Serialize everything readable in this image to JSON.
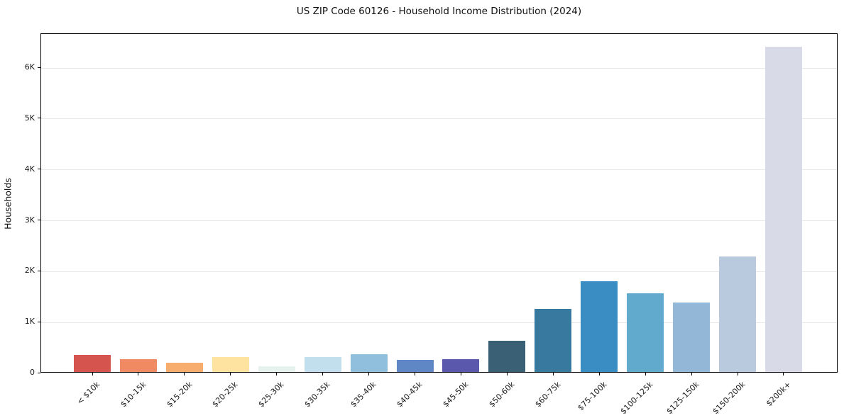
{
  "figure": {
    "background": "#ffffff",
    "axis_color": "#000000",
    "grid_color": "#e8e8e8",
    "text_color": "#1a1a1a"
  },
  "chart_data": {
    "type": "bar",
    "title": "US ZIP Code 60126 - Household Income Distribution (2024)",
    "xlabel": "",
    "ylabel": "Households",
    "legend": "none",
    "grid": "horizontal",
    "ylim": [
      0,
      6670
    ],
    "yticks": [
      {
        "value": 0,
        "label": "0"
      },
      {
        "value": 1000,
        "label": "1K"
      },
      {
        "value": 2000,
        "label": "2K"
      },
      {
        "value": 3000,
        "label": "3K"
      },
      {
        "value": 4000,
        "label": "4K"
      },
      {
        "value": 5000,
        "label": "5K"
      },
      {
        "value": 6000,
        "label": "6K"
      }
    ],
    "categories": [
      "< $10k",
      "$10-15k",
      "$15-20k",
      "$20-25k",
      "$25-30k",
      "$30-35k",
      "$35-40k",
      "$40-45k",
      "$45-50k",
      "$50-60k",
      "$60-75k",
      "$75-100k",
      "$100-125k",
      "$125-150k",
      "$150-200k",
      "$200k+"
    ],
    "values": [
      330,
      250,
      180,
      295,
      115,
      290,
      350,
      235,
      250,
      610,
      1240,
      1780,
      1545,
      1360,
      2270,
      6390
    ],
    "bar_colors": [
      "#d6544e",
      "#ef8a62",
      "#f7ad6e",
      "#fde39f",
      "#e6f2ee",
      "#c2dfee",
      "#90bfde",
      "#5f87c6",
      "#5a58ad",
      "#3a6076",
      "#38799f",
      "#3a8dc3",
      "#61a9cd",
      "#93b7d6",
      "#b9c9de",
      "#d8dae7"
    ]
  }
}
